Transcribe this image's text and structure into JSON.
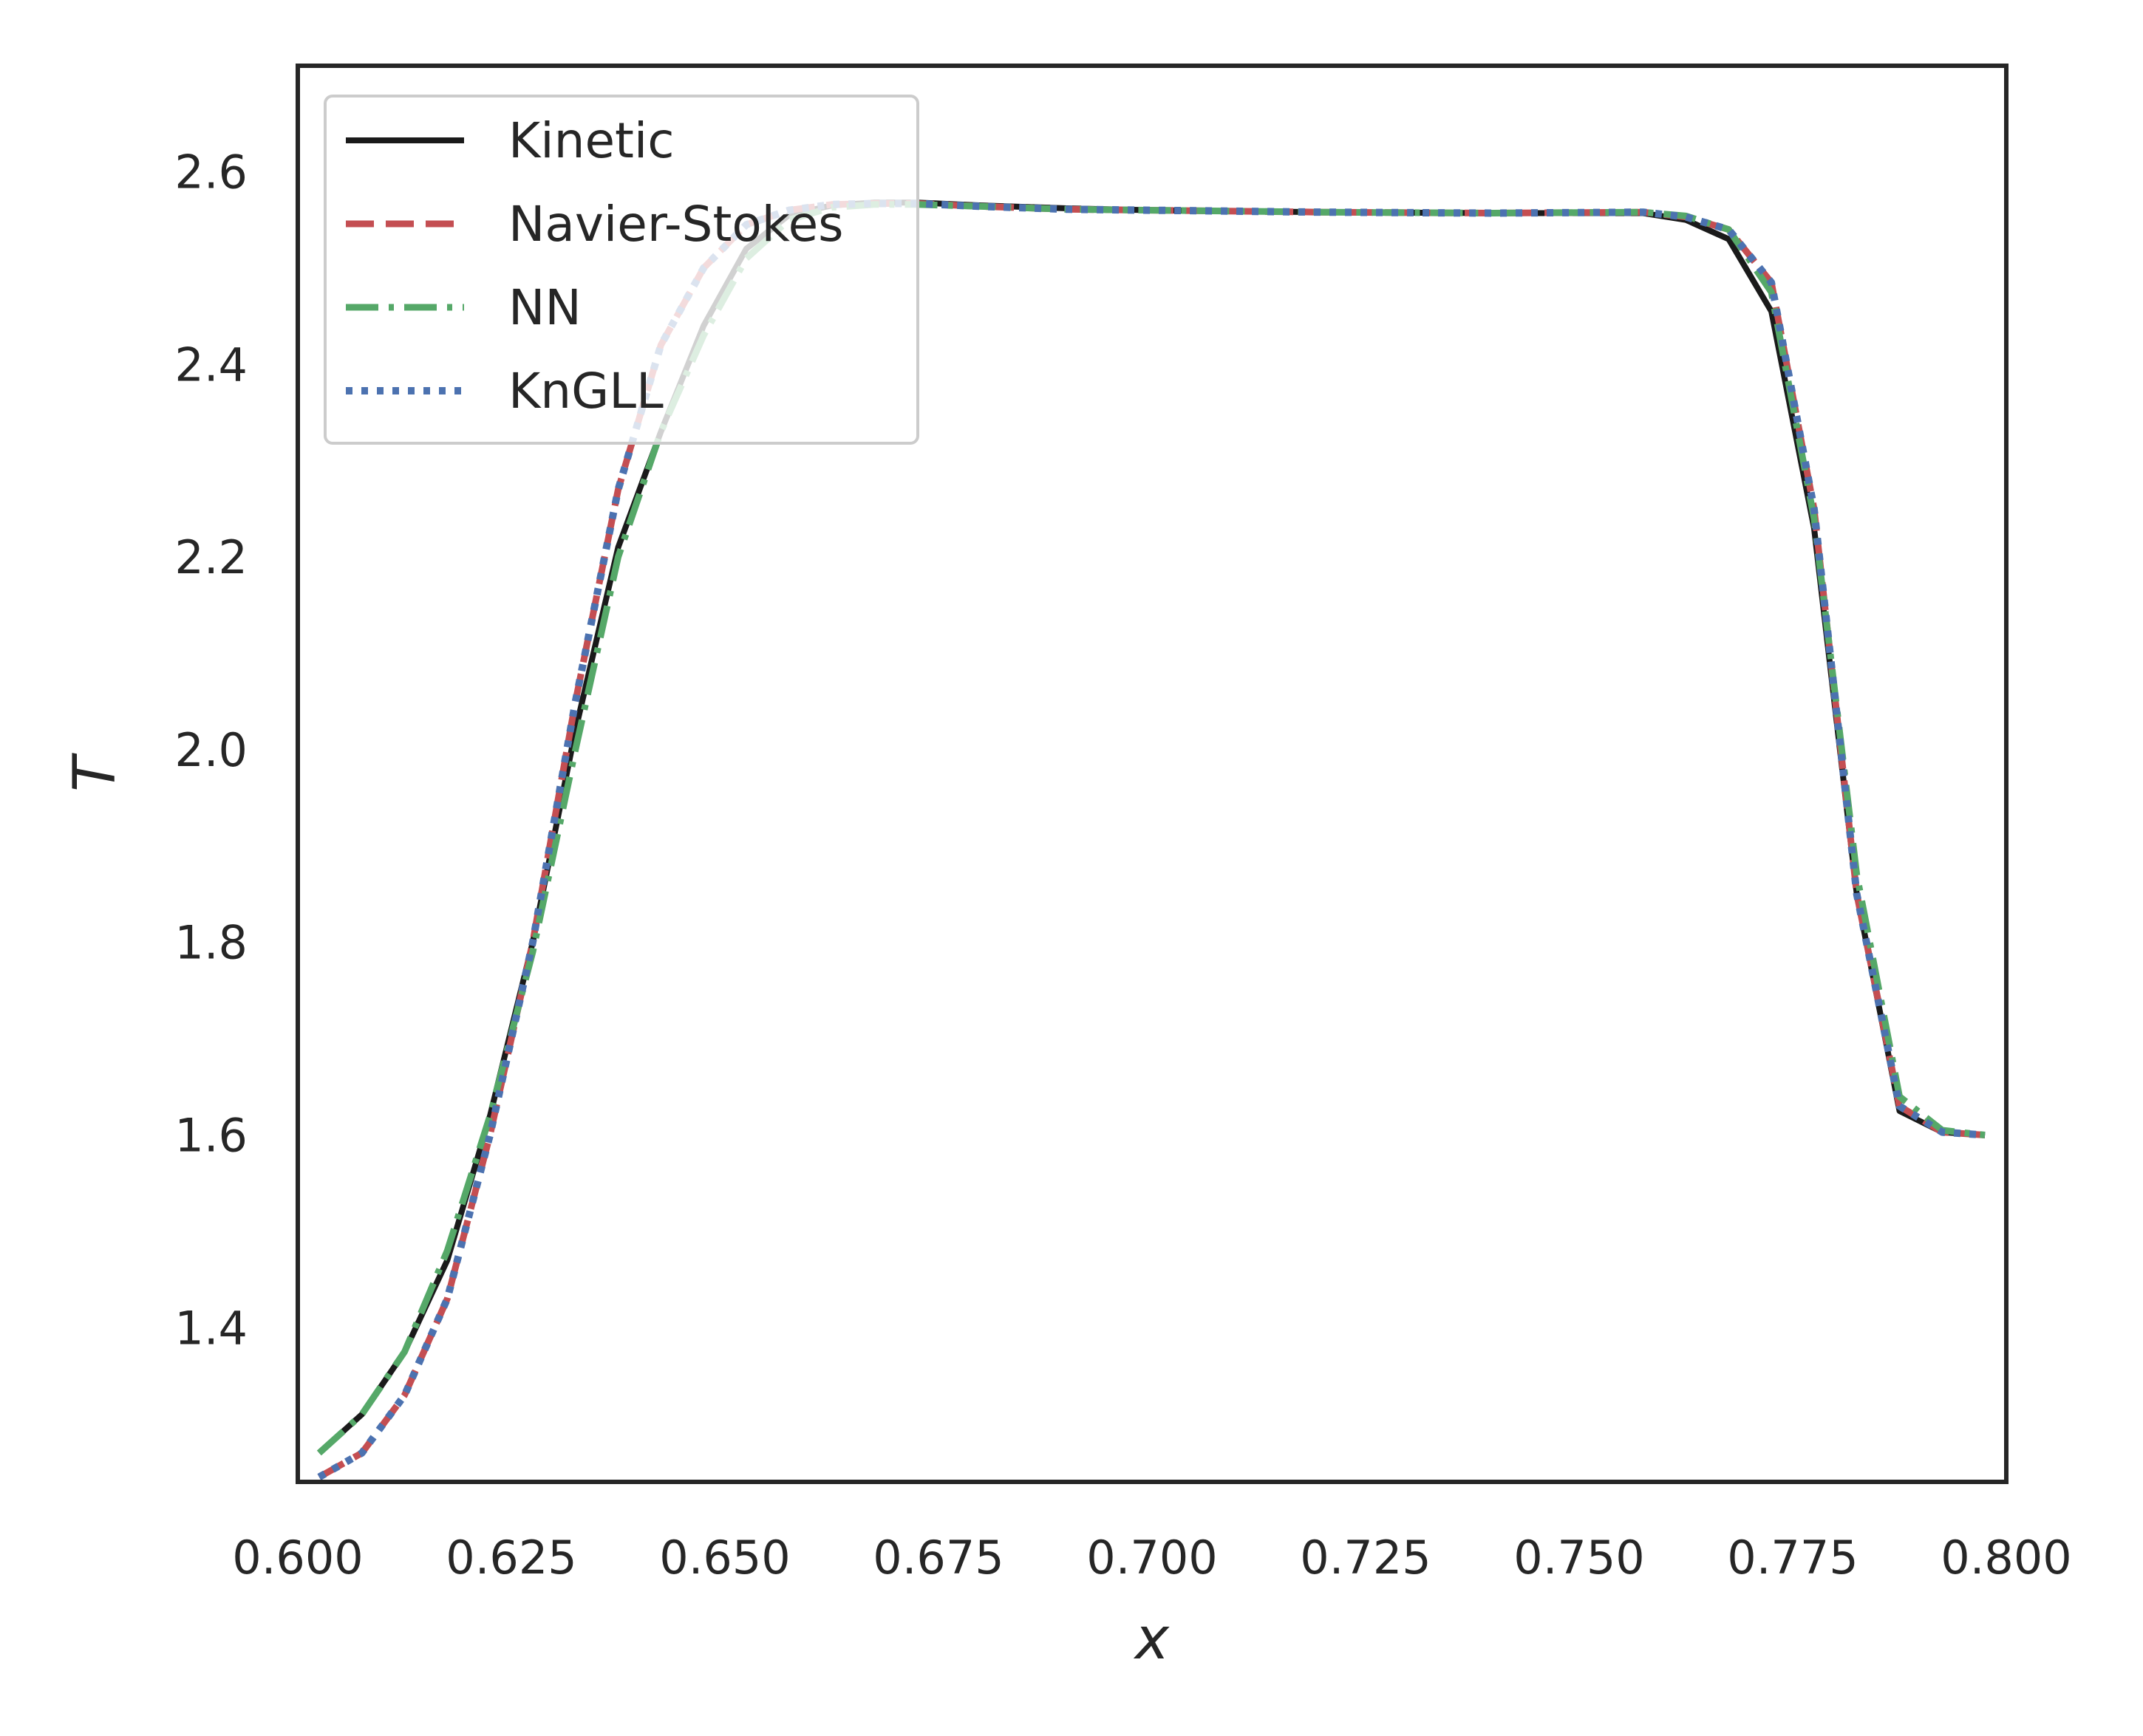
{
  "chart_data": {
    "type": "line",
    "title": "",
    "xlabel": "x",
    "ylabel": "T",
    "xlim": [
      0.6,
      0.8
    ],
    "ylim": [
      1.24,
      2.71
    ],
    "grid": false,
    "legend_position": "top-left",
    "x_ticks": [
      "0.600",
      "0.625",
      "0.650",
      "0.675",
      "0.700",
      "0.725",
      "0.750",
      "0.775",
      "0.800"
    ],
    "y_ticks": [
      "1.4",
      "1.6",
      "1.8",
      "2.0",
      "2.2",
      "2.4",
      "2.6"
    ],
    "series": [
      {
        "name": "Kinetic",
        "color": "#1a1a1a",
        "style": "solid",
        "x": [
          0.6025,
          0.6075,
          0.6125,
          0.6175,
          0.6225,
          0.6275,
          0.6325,
          0.6375,
          0.6425,
          0.6475,
          0.6525,
          0.6575,
          0.6625,
          0.6675,
          0.6725,
          0.68,
          0.69,
          0.7,
          0.72,
          0.74,
          0.7575,
          0.7625,
          0.7675,
          0.7725,
          0.7775,
          0.7825,
          0.7875,
          0.7925,
          0.7975
        ],
        "y": [
          1.27,
          1.31,
          1.375,
          1.47,
          1.62,
          1.8,
          2.02,
          2.21,
          2.33,
          2.44,
          2.52,
          2.555,
          2.565,
          2.568,
          2.568,
          2.565,
          2.562,
          2.56,
          2.558,
          2.557,
          2.557,
          2.55,
          2.53,
          2.455,
          2.23,
          1.85,
          1.625,
          1.603,
          1.6
        ]
      },
      {
        "name": "Navier-Stokes",
        "color": "#c44e52",
        "style": "dashed",
        "x": [
          0.6025,
          0.6075,
          0.6125,
          0.6175,
          0.6225,
          0.6275,
          0.6325,
          0.6375,
          0.6425,
          0.6475,
          0.6525,
          0.6575,
          0.6625,
          0.6675,
          0.6725,
          0.68,
          0.69,
          0.7,
          0.72,
          0.74,
          0.7575,
          0.7625,
          0.7675,
          0.7725,
          0.7775,
          0.7825,
          0.7875,
          0.7925,
          0.7975
        ],
        "y": [
          1.245,
          1.27,
          1.33,
          1.43,
          1.6,
          1.8,
          2.05,
          2.27,
          2.42,
          2.5,
          2.545,
          2.56,
          2.566,
          2.567,
          2.567,
          2.564,
          2.561,
          2.56,
          2.558,
          2.557,
          2.558,
          2.553,
          2.54,
          2.485,
          2.25,
          1.85,
          1.63,
          1.603,
          1.6
        ]
      },
      {
        "name": "NN",
        "color": "#55a868",
        "style": "dashdot",
        "x": [
          0.6025,
          0.6075,
          0.6125,
          0.6175,
          0.6225,
          0.6275,
          0.6325,
          0.6375,
          0.6425,
          0.6475,
          0.6525,
          0.6575,
          0.6625,
          0.6675,
          0.6725,
          0.68,
          0.69,
          0.7,
          0.72,
          0.74,
          0.7575,
          0.7625,
          0.7675,
          0.7725,
          0.7775,
          0.7825,
          0.7875,
          0.7925,
          0.7975
        ],
        "y": [
          1.27,
          1.31,
          1.375,
          1.48,
          1.62,
          1.79,
          2.0,
          2.2,
          2.33,
          2.43,
          2.51,
          2.55,
          2.563,
          2.566,
          2.566,
          2.564,
          2.561,
          2.56,
          2.558,
          2.557,
          2.558,
          2.554,
          2.54,
          2.475,
          2.24,
          1.87,
          1.64,
          1.605,
          1.6
        ]
      },
      {
        "name": "KnGLL",
        "color": "#4c72b0",
        "style": "dotted",
        "x": [
          0.6025,
          0.6075,
          0.6125,
          0.6175,
          0.6225,
          0.6275,
          0.6325,
          0.6375,
          0.6425,
          0.6475,
          0.6525,
          0.6575,
          0.6625,
          0.6675,
          0.6725,
          0.68,
          0.69,
          0.7,
          0.72,
          0.74,
          0.7575,
          0.7625,
          0.7675,
          0.7725,
          0.7775,
          0.7825,
          0.7875,
          0.7925,
          0.7975
        ],
        "y": [
          1.245,
          1.27,
          1.33,
          1.43,
          1.6,
          1.8,
          2.05,
          2.27,
          2.42,
          2.5,
          2.545,
          2.56,
          2.566,
          2.567,
          2.567,
          2.564,
          2.561,
          2.56,
          2.558,
          2.557,
          2.558,
          2.553,
          2.54,
          2.485,
          2.25,
          1.85,
          1.63,
          1.603,
          1.6
        ]
      }
    ]
  }
}
